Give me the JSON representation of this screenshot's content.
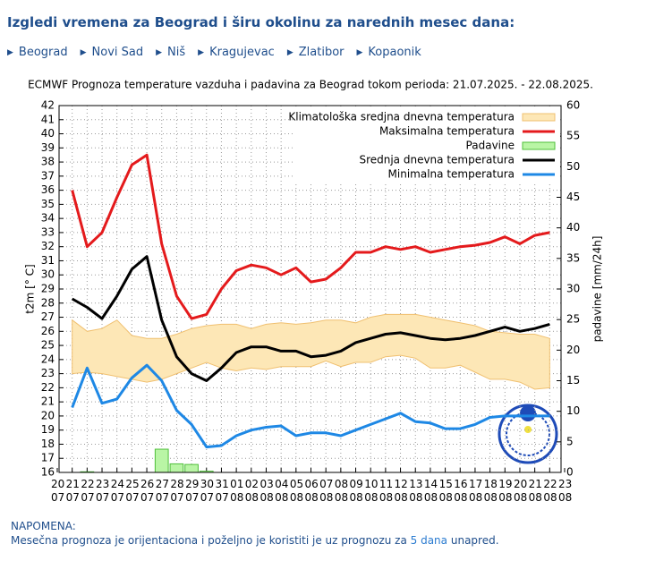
{
  "header": {
    "title": "Izgledi vremena za Beograd i širu okolinu za narednih mesec dana:",
    "links": [
      "Beograd",
      "Novi Sad",
      "Niš",
      "Kragujevac",
      "Zlatibor",
      "Kopaonik"
    ]
  },
  "chart_data": {
    "type": "line",
    "title": "ECMWF Prognoza temperature vazduha i padavina za Beograd tokom perioda: 21.07.2025. - 22.08.2025.",
    "ylabel": "t2m [° C]",
    "y2label": "padavine [mm/24h]",
    "categories": [
      "20 07",
      "21 07",
      "22 07",
      "23 07",
      "24 07",
      "25 07",
      "26 07",
      "27 07",
      "28 07",
      "29 07",
      "30 07",
      "31 07",
      "01 08",
      "02 08",
      "03 08",
      "04 08",
      "05 08",
      "06 08",
      "07 08",
      "08 08",
      "09 08",
      "10 08",
      "11 08",
      "12 08",
      "13 08",
      "14 08",
      "15 08",
      "16 08",
      "17 08",
      "18 08",
      "19 08",
      "20 08",
      "21 08",
      "22 08",
      "23 08"
    ],
    "ylim": [
      16,
      42
    ],
    "yticks": [
      16,
      17,
      18,
      19,
      20,
      21,
      22,
      23,
      24,
      25,
      26,
      27,
      28,
      29,
      30,
      31,
      32,
      33,
      34,
      35,
      36,
      37,
      38,
      39,
      40,
      41,
      42
    ],
    "y2lim": [
      0,
      60
    ],
    "y2ticks": [
      0,
      5,
      10,
      15,
      20,
      25,
      30,
      35,
      40,
      45,
      50,
      55,
      60
    ],
    "grid": true,
    "series": [
      {
        "name": "Klimatološka sredjna dnevna temperatura",
        "type": "band",
        "color": "#fde7b6",
        "upper": [
          null,
          26.8,
          26,
          26.2,
          26.8,
          25.7,
          25.5,
          25.5,
          25.8,
          26.2,
          26.4,
          26.5,
          26.5,
          26.2,
          26.5,
          26.6,
          26.5,
          26.6,
          26.8,
          26.8,
          26.6,
          27,
          27.2,
          27.2,
          27.2,
          27,
          26.8,
          26.6,
          26.4,
          26,
          25.9,
          25.8,
          25.8,
          25.5,
          null
        ],
        "lower": [
          null,
          23,
          23.1,
          23,
          22.8,
          22.6,
          22.4,
          22.6,
          23,
          23.4,
          23.8,
          23.4,
          23.2,
          23.4,
          23.3,
          23.5,
          23.5,
          23.5,
          23.9,
          23.5,
          23.8,
          23.8,
          24.2,
          24.3,
          24.1,
          23.4,
          23.4,
          23.6,
          23.1,
          22.6,
          22.6,
          22.4,
          21.9,
          22,
          null
        ]
      },
      {
        "name": "Maksimalna temperatura",
        "type": "line",
        "color": "#e41a1c",
        "values": [
          null,
          36,
          32,
          33,
          35.5,
          37.8,
          38.5,
          32.2,
          28.5,
          26.9,
          27.2,
          29,
          30.3,
          30.7,
          30.5,
          30,
          30.5,
          29.5,
          29.7,
          30.5,
          31.6,
          31.6,
          32,
          31.8,
          32,
          31.6,
          31.8,
          32,
          32.1,
          32.3,
          32.7,
          32.2,
          32.8,
          33,
          null
        ]
      },
      {
        "name": "Padavine",
        "type": "bar",
        "axis": "y2",
        "color": "#b9f5a5",
        "values": [
          null,
          0,
          0.1,
          0,
          0,
          0,
          0,
          3.8,
          1.4,
          1.3,
          0.2,
          0,
          0,
          0,
          0,
          0,
          0,
          0,
          0,
          0,
          0,
          0,
          0,
          0,
          0,
          0,
          0,
          0,
          0,
          0,
          0,
          0,
          0,
          0,
          null
        ]
      },
      {
        "name": "Srednja dnevna temperatura",
        "type": "line",
        "color": "#000000",
        "values": [
          null,
          28.3,
          27.7,
          26.9,
          28.5,
          30.4,
          31.3,
          26.8,
          24.2,
          23,
          22.5,
          23.4,
          24.5,
          24.9,
          24.9,
          24.6,
          24.6,
          24.2,
          24.3,
          24.6,
          25.2,
          25.5,
          25.8,
          25.9,
          25.7,
          25.5,
          25.4,
          25.5,
          25.7,
          26,
          26.3,
          26,
          26.2,
          26.5,
          null
        ]
      },
      {
        "name": "Minimalna temperatura",
        "type": "line",
        "color": "#1e88e5",
        "values": [
          null,
          20.6,
          23.4,
          20.9,
          21.2,
          22.7,
          23.6,
          22.5,
          20.4,
          19.4,
          17.8,
          17.9,
          18.6,
          19,
          19.2,
          19.3,
          18.6,
          18.8,
          18.8,
          18.6,
          19,
          19.4,
          19.8,
          20.2,
          19.6,
          19.5,
          19.1,
          19.1,
          19.4,
          19.9,
          20,
          20,
          20,
          20,
          null
        ]
      }
    ]
  },
  "note": {
    "heading": "NAPOMENA:",
    "text_before": "Mesečna prognoza je orijentaciona i poželjno je koristiti je uz prognozu za",
    "link": "5 dana",
    "text_after": "unapred."
  }
}
